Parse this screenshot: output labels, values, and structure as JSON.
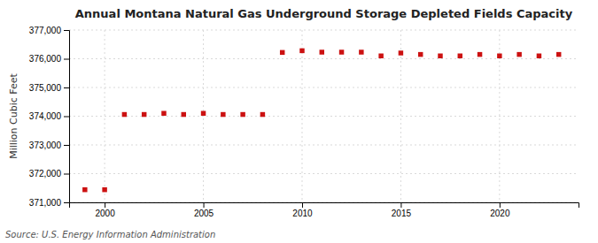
{
  "chart_data": {
    "type": "scatter",
    "title": "Annual Montana Natural Gas Underground Storage Depleted Fields Capacity",
    "y_label": "Million Cubic Feet",
    "annotations": [
      "Source: U.S. Energy Information Administration"
    ],
    "x": [
      1999,
      2000,
      2001,
      2002,
      2003,
      2004,
      2005,
      2006,
      2007,
      2008,
      2009,
      2010,
      2011,
      2012,
      2013,
      2014,
      2015,
      2016,
      2017,
      2018,
      2019,
      2020,
      2021,
      2022,
      2023
    ],
    "values": [
      371440,
      371440,
      374060,
      374060,
      374100,
      374060,
      374100,
      374060,
      374060,
      374060,
      376220,
      376280,
      376230,
      376230,
      376230,
      376100,
      376200,
      376150,
      376100,
      376100,
      376150,
      376100,
      376150,
      376100,
      376150
    ],
    "color": "#cc1111",
    "marker": "square",
    "xlim": [
      1998.2,
      2024.0
    ],
    "xticks": [
      2000,
      2005,
      2010,
      2015,
      2020
    ],
    "ylim": [
      371000,
      377000
    ],
    "yticks": [
      {
        "value": 371000,
        "label": "371,000"
      },
      {
        "value": 372000,
        "label": "372,000"
      },
      {
        "value": 373000,
        "label": "373,000"
      },
      {
        "value": 374000,
        "label": "374,000"
      },
      {
        "value": 375000,
        "label": "375,000"
      },
      {
        "value": 376000,
        "label": "376,000"
      },
      {
        "value": 377000,
        "label": "377,000"
      }
    ],
    "grid": true
  }
}
